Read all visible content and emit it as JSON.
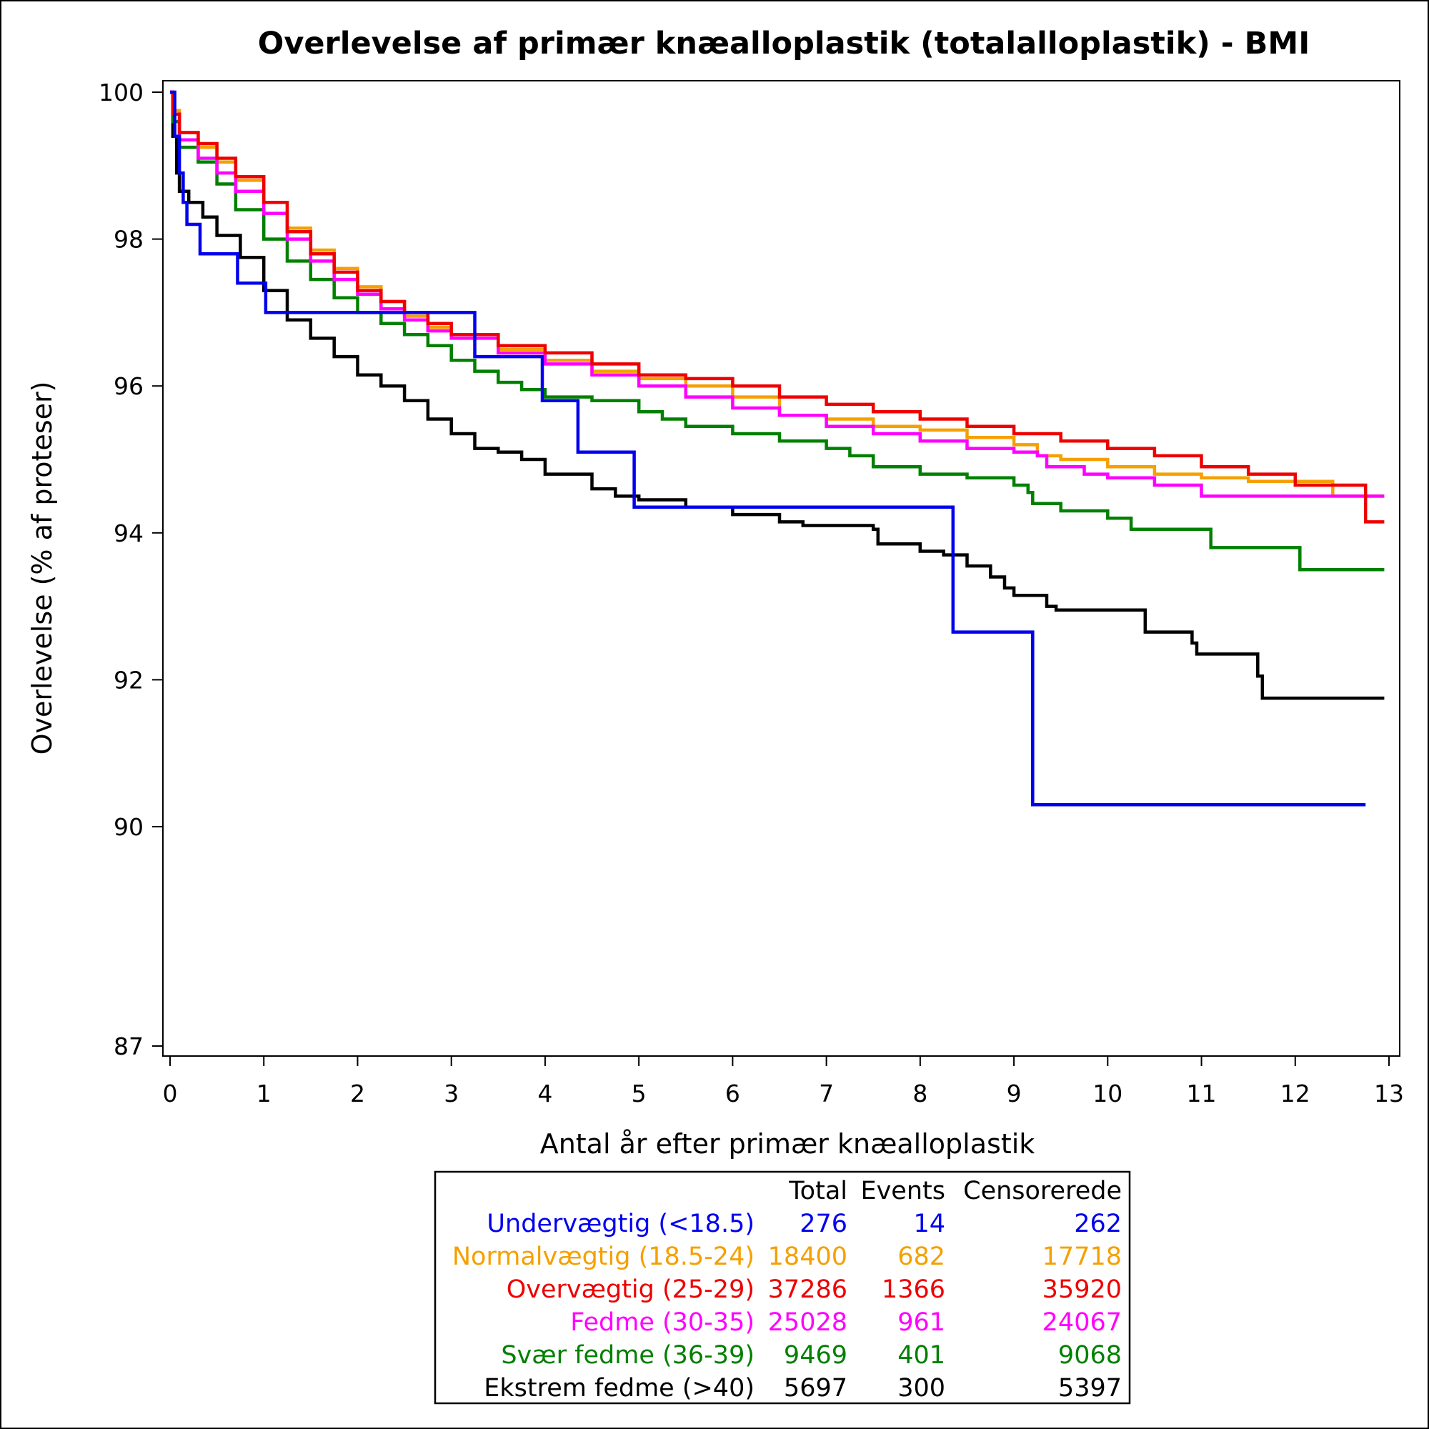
{
  "chart_data": {
    "type": "line",
    "title": "Overlevelse af primær knæalloplastik (totalalloplastik) - BMI",
    "xlabel": "Antal år efter primær knæalloplastik",
    "ylabel": "Overlevelse (% af proteser)",
    "xlim": [
      0,
      13
    ],
    "ylim": [
      87,
      100
    ],
    "xticks": [
      "0",
      "1",
      "2",
      "3",
      "4",
      "5",
      "6",
      "7",
      "8",
      "9",
      "10",
      "11",
      "12",
      "13"
    ],
    "yticks": [
      "87",
      "90",
      "92",
      "94",
      "96",
      "98",
      "100"
    ],
    "grid": false,
    "step": true,
    "series": [
      {
        "name": "Undervægtig (<18.5)",
        "color": "#0000ee",
        "total": "276",
        "events": "14",
        "censored": "262",
        "points": [
          [
            0,
            100
          ],
          [
            0.05,
            100
          ],
          [
            0.05,
            99.4
          ],
          [
            0.1,
            99.4
          ],
          [
            0.1,
            98.9
          ],
          [
            0.14,
            98.9
          ],
          [
            0.14,
            98.5
          ],
          [
            0.18,
            98.5
          ],
          [
            0.18,
            98.2
          ],
          [
            0.32,
            98.2
          ],
          [
            0.32,
            97.8
          ],
          [
            0.72,
            97.8
          ],
          [
            0.72,
            97.4
          ],
          [
            1.02,
            97.4
          ],
          [
            1.02,
            97.0
          ],
          [
            3.25,
            97.0
          ],
          [
            3.25,
            96.4
          ],
          [
            3.97,
            96.4
          ],
          [
            3.97,
            95.8
          ],
          [
            4.35,
            95.8
          ],
          [
            4.35,
            95.1
          ],
          [
            4.95,
            95.1
          ],
          [
            4.95,
            94.35
          ],
          [
            8.35,
            94.35
          ],
          [
            8.35,
            92.65
          ],
          [
            9.2,
            92.65
          ],
          [
            9.2,
            90.3
          ],
          [
            12.75,
            90.3
          ]
        ]
      },
      {
        "name": "Normalvægtig (18.5-24)",
        "color": "#f5a000",
        "total": "18400",
        "events": "682",
        "censored": "17718",
        "points": [
          [
            0,
            100
          ],
          [
            0.03,
            99.75
          ],
          [
            0.1,
            99.45
          ],
          [
            0.3,
            99.25
          ],
          [
            0.5,
            99.05
          ],
          [
            0.7,
            98.8
          ],
          [
            1,
            98.5
          ],
          [
            1.25,
            98.15
          ],
          [
            1.5,
            97.85
          ],
          [
            1.75,
            97.6
          ],
          [
            2,
            97.35
          ],
          [
            2.25,
            97.15
          ],
          [
            2.5,
            96.95
          ],
          [
            2.75,
            96.8
          ],
          [
            3,
            96.7
          ],
          [
            3.5,
            96.5
          ],
          [
            4,
            96.35
          ],
          [
            4.5,
            96.2
          ],
          [
            5,
            96.1
          ],
          [
            5.5,
            96.0
          ],
          [
            6,
            95.85
          ],
          [
            6.5,
            95.6
          ],
          [
            7,
            95.55
          ],
          [
            7.5,
            95.45
          ],
          [
            8,
            95.4
          ],
          [
            8.5,
            95.3
          ],
          [
            9,
            95.2
          ],
          [
            9.25,
            95.05
          ],
          [
            9.5,
            95.0
          ],
          [
            10,
            94.9
          ],
          [
            10.5,
            94.8
          ],
          [
            11,
            94.75
          ],
          [
            11.5,
            94.7
          ],
          [
            12.4,
            94.7
          ],
          [
            12.4,
            94.5
          ],
          [
            12.95,
            94.5
          ]
        ]
      },
      {
        "name": "Overvægtig (25-29)",
        "color": "#ee0000",
        "total": "37286",
        "events": "1366",
        "censored": "35920",
        "points": [
          [
            0,
            100
          ],
          [
            0.03,
            99.7
          ],
          [
            0.1,
            99.45
          ],
          [
            0.3,
            99.3
          ],
          [
            0.5,
            99.1
          ],
          [
            0.7,
            98.85
          ],
          [
            1,
            98.5
          ],
          [
            1.25,
            98.1
          ],
          [
            1.5,
            97.8
          ],
          [
            1.75,
            97.55
          ],
          [
            2,
            97.3
          ],
          [
            2.25,
            97.15
          ],
          [
            2.5,
            97.0
          ],
          [
            2.75,
            96.85
          ],
          [
            3,
            96.7
          ],
          [
            3.5,
            96.55
          ],
          [
            4,
            96.45
          ],
          [
            4.5,
            96.3
          ],
          [
            5,
            96.15
          ],
          [
            5.5,
            96.1
          ],
          [
            6,
            96.0
          ],
          [
            6.5,
            95.85
          ],
          [
            7,
            95.75
          ],
          [
            7.5,
            95.65
          ],
          [
            8,
            95.55
          ],
          [
            8.5,
            95.45
          ],
          [
            9,
            95.35
          ],
          [
            9.5,
            95.25
          ],
          [
            10,
            95.15
          ],
          [
            10.5,
            95.05
          ],
          [
            11,
            94.9
          ],
          [
            11.5,
            94.8
          ],
          [
            12,
            94.65
          ],
          [
            12.75,
            94.5
          ],
          [
            12.75,
            94.15
          ],
          [
            12.95,
            94.15
          ]
        ]
      },
      {
        "name": "Fedme (30-35)",
        "color": "#ff00ff",
        "total": "25028",
        "events": "961",
        "censored": "24067",
        "points": [
          [
            0,
            100
          ],
          [
            0.03,
            99.7
          ],
          [
            0.1,
            99.35
          ],
          [
            0.3,
            99.1
          ],
          [
            0.5,
            98.9
          ],
          [
            0.7,
            98.65
          ],
          [
            1,
            98.35
          ],
          [
            1.25,
            98.0
          ],
          [
            1.5,
            97.7
          ],
          [
            1.75,
            97.45
          ],
          [
            2,
            97.25
          ],
          [
            2.25,
            97.05
          ],
          [
            2.5,
            96.9
          ],
          [
            2.75,
            96.75
          ],
          [
            3,
            96.65
          ],
          [
            3.5,
            96.45
          ],
          [
            4,
            96.3
          ],
          [
            4.5,
            96.15
          ],
          [
            5,
            96.0
          ],
          [
            5.5,
            95.85
          ],
          [
            6,
            95.7
          ],
          [
            6.5,
            95.6
          ],
          [
            7,
            95.45
          ],
          [
            7.5,
            95.35
          ],
          [
            8,
            95.25
          ],
          [
            8.5,
            95.15
          ],
          [
            9,
            95.1
          ],
          [
            9.25,
            95.05
          ],
          [
            9.35,
            94.9
          ],
          [
            9.75,
            94.8
          ],
          [
            10,
            94.75
          ],
          [
            10.5,
            94.65
          ],
          [
            11,
            94.5
          ],
          [
            12,
            94.5
          ],
          [
            12.95,
            94.5
          ]
        ]
      },
      {
        "name": "Svær fedme (36-39)",
        "color": "#008000",
        "total": "9469",
        "events": "401",
        "censored": "9068",
        "points": [
          [
            0,
            100
          ],
          [
            0.03,
            99.6
          ],
          [
            0.1,
            99.25
          ],
          [
            0.3,
            99.05
          ],
          [
            0.5,
            98.75
          ],
          [
            0.7,
            98.4
          ],
          [
            1,
            98.0
          ],
          [
            1.25,
            97.7
          ],
          [
            1.5,
            97.45
          ],
          [
            1.75,
            97.2
          ],
          [
            2,
            97.0
          ],
          [
            2.25,
            96.85
          ],
          [
            2.5,
            96.7
          ],
          [
            2.75,
            96.55
          ],
          [
            3,
            96.35
          ],
          [
            3.25,
            96.2
          ],
          [
            3.5,
            96.05
          ],
          [
            3.75,
            95.95
          ],
          [
            4,
            95.85
          ],
          [
            4.5,
            95.8
          ],
          [
            5,
            95.65
          ],
          [
            5.25,
            95.55
          ],
          [
            5.5,
            95.45
          ],
          [
            6,
            95.35
          ],
          [
            6.5,
            95.25
          ],
          [
            7,
            95.15
          ],
          [
            7.25,
            95.05
          ],
          [
            7.5,
            94.9
          ],
          [
            8,
            94.8
          ],
          [
            8.5,
            94.75
          ],
          [
            9,
            94.65
          ],
          [
            9.15,
            94.55
          ],
          [
            9.2,
            94.4
          ],
          [
            9.5,
            94.3
          ],
          [
            10,
            94.2
          ],
          [
            10.25,
            94.05
          ],
          [
            11,
            94.05
          ],
          [
            11.1,
            93.8
          ],
          [
            12.05,
            93.8
          ],
          [
            12.05,
            93.5
          ],
          [
            12.95,
            93.5
          ]
        ]
      },
      {
        "name": "Ekstrem fedme (>40)",
        "color": "#000000",
        "total": "5697",
        "events": "300",
        "censored": "5397",
        "points": [
          [
            0,
            100
          ],
          [
            0.03,
            99.4
          ],
          [
            0.07,
            98.9
          ],
          [
            0.1,
            98.65
          ],
          [
            0.2,
            98.5
          ],
          [
            0.35,
            98.3
          ],
          [
            0.5,
            98.05
          ],
          [
            0.75,
            97.75
          ],
          [
            1,
            97.3
          ],
          [
            1.25,
            96.9
          ],
          [
            1.5,
            96.65
          ],
          [
            1.75,
            96.4
          ],
          [
            2,
            96.15
          ],
          [
            2.25,
            96.0
          ],
          [
            2.5,
            95.8
          ],
          [
            2.75,
            95.55
          ],
          [
            3,
            95.35
          ],
          [
            3.25,
            95.15
          ],
          [
            3.5,
            95.1
          ],
          [
            3.75,
            95.0
          ],
          [
            4,
            94.8
          ],
          [
            4.5,
            94.6
          ],
          [
            4.75,
            94.5
          ],
          [
            5,
            94.45
          ],
          [
            5.5,
            94.35
          ],
          [
            6,
            94.25
          ],
          [
            6.5,
            94.15
          ],
          [
            6.75,
            94.1
          ],
          [
            7.5,
            94.05
          ],
          [
            7.55,
            93.85
          ],
          [
            8,
            93.75
          ],
          [
            8.25,
            93.7
          ],
          [
            8.5,
            93.55
          ],
          [
            8.75,
            93.4
          ],
          [
            8.9,
            93.25
          ],
          [
            9,
            93.15
          ],
          [
            9.35,
            93.0
          ],
          [
            9.45,
            92.95
          ],
          [
            10.4,
            92.95
          ],
          [
            10.4,
            92.65
          ],
          [
            10.8,
            92.65
          ],
          [
            10.9,
            92.5
          ],
          [
            10.95,
            92.35
          ],
          [
            11.55,
            92.35
          ],
          [
            11.6,
            92.05
          ],
          [
            11.65,
            91.75
          ],
          [
            12.95,
            91.75
          ]
        ]
      }
    ],
    "table": {
      "headers": [
        "Total",
        "Events",
        "Censorerede"
      ]
    }
  }
}
